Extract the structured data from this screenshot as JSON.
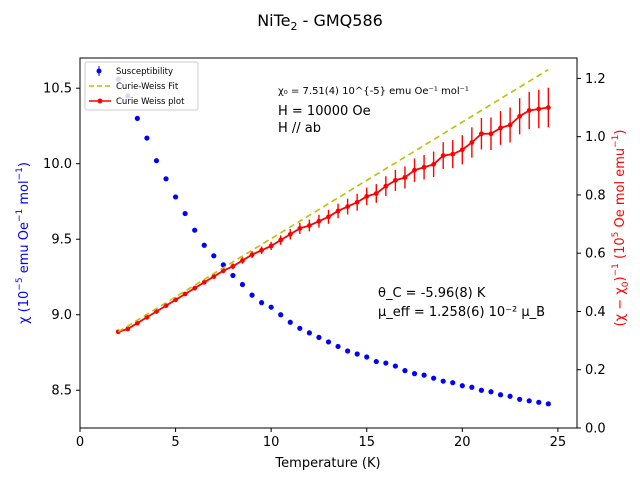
{
  "chart_data": {
    "type": "scatter",
    "title": "NiTe",
    "title_sub": "2",
    "title_rest": " - GMQ586",
    "xlabel": "Temperature (K)",
    "ylabel_left": {
      "prefix": "χ (10",
      "sup1": "−5",
      "mid": " emu Oe",
      "sup2": "−1",
      "mid2": " mol",
      "sup3": "−1",
      "suffix": ")"
    },
    "ylabel_right": {
      "prefix": "(χ − χ",
      "sub0": "0",
      "mid": ")",
      "sup1": "−1",
      "mid2": " (10",
      "sup2": "5",
      "mid3": " Oe mol emu",
      "sup3": "−1",
      "suffix": ")"
    },
    "xlim": [
      0,
      26
    ],
    "ylim_left": [
      8.25,
      10.7
    ],
    "ylim_right": [
      0,
      1.27
    ],
    "xticks": [
      0,
      5,
      10,
      15,
      20,
      25
    ],
    "yticks_left": [
      8.5,
      9.0,
      9.5,
      10.0,
      10.5
    ],
    "yticks_right": [
      0.0,
      0.2,
      0.4,
      0.6,
      0.8,
      1.0,
      1.2
    ],
    "legend": {
      "position": "top-left",
      "entries": [
        "Susceptibility",
        "Curie-Weiss Fit",
        "Curie Weiss plot"
      ]
    },
    "annotations": {
      "chi0": "χ₀ = 7.51(4) 10^{-5} emu Oe⁻¹ mol⁻¹",
      "field": "H = 10000 Oe",
      "orientation": "H // ab",
      "theta": "θ_C = -5.96(8) K",
      "mu_eff": "μ_eff =   1.258(6) 10⁻² μ_B"
    },
    "colors": {
      "susceptibility": "#0000ff",
      "fit": "#bfbf00",
      "curie_weiss": "#ff0000"
    },
    "series": [
      {
        "name": "Susceptibility",
        "axis": "left",
        "x": [
          2.0,
          2.5,
          3.0,
          3.5,
          4.0,
          4.5,
          5.0,
          5.5,
          6.0,
          6.5,
          7.0,
          7.5,
          8.0,
          8.5,
          9.0,
          9.5,
          10.0,
          10.5,
          11.0,
          11.5,
          12.0,
          12.5,
          13.0,
          13.5,
          14.0,
          14.5,
          15.0,
          15.5,
          16.0,
          16.5,
          17.0,
          17.5,
          18.0,
          18.5,
          19.0,
          19.5,
          20.0,
          20.5,
          21.0,
          21.5,
          22.0,
          22.5,
          23.0,
          23.5,
          24.0,
          24.5
        ],
        "y": [
          10.56,
          10.45,
          10.3,
          10.17,
          10.02,
          9.9,
          9.78,
          9.67,
          9.56,
          9.46,
          9.39,
          9.33,
          9.26,
          9.2,
          9.13,
          9.08,
          9.05,
          9.0,
          8.95,
          8.91,
          8.88,
          8.85,
          8.82,
          8.79,
          8.76,
          8.74,
          8.72,
          8.69,
          8.68,
          8.66,
          8.63,
          8.61,
          8.6,
          8.58,
          8.56,
          8.55,
          8.53,
          8.52,
          8.5,
          8.49,
          8.47,
          8.46,
          8.44,
          8.43,
          8.42,
          8.41
        ]
      },
      {
        "name": "Curie-Weiss Fit",
        "axis": "right",
        "x": [
          2.0,
          24.5
        ],
        "y": [
          0.33,
          1.23
        ]
      },
      {
        "name": "Curie Weiss plot",
        "axis": "right",
        "x": [
          2.0,
          2.5,
          3.0,
          3.5,
          4.0,
          4.5,
          5.0,
          5.5,
          6.0,
          6.5,
          7.0,
          7.5,
          8.0,
          8.5,
          9.0,
          9.5,
          10.0,
          10.5,
          11.0,
          11.5,
          12.0,
          12.5,
          13.0,
          13.5,
          14.0,
          14.5,
          15.0,
          15.5,
          16.0,
          16.5,
          17.0,
          17.5,
          18.0,
          18.5,
          19.0,
          19.5,
          20.0,
          20.5,
          21.0,
          21.5,
          22.0,
          22.5,
          23.0,
          23.5,
          24.0,
          24.5
        ],
        "y": [
          0.33,
          0.34,
          0.36,
          0.38,
          0.4,
          0.42,
          0.44,
          0.46,
          0.48,
          0.5,
          0.52,
          0.54,
          0.555,
          0.575,
          0.595,
          0.61,
          0.625,
          0.645,
          0.665,
          0.685,
          0.695,
          0.71,
          0.725,
          0.745,
          0.76,
          0.775,
          0.795,
          0.805,
          0.83,
          0.85,
          0.86,
          0.885,
          0.895,
          0.905,
          0.935,
          0.94,
          0.955,
          0.98,
          1.01,
          1.01,
          1.03,
          1.04,
          1.07,
          1.09,
          1.095,
          1.1
        ],
        "err": [
          0.005,
          0.005,
          0.005,
          0.005,
          0.005,
          0.005,
          0.005,
          0.005,
          0.006,
          0.007,
          0.008,
          0.009,
          0.01,
          0.011,
          0.012,
          0.013,
          0.014,
          0.016,
          0.018,
          0.019,
          0.02,
          0.022,
          0.024,
          0.025,
          0.027,
          0.029,
          0.03,
          0.032,
          0.034,
          0.036,
          0.038,
          0.04,
          0.042,
          0.044,
          0.046,
          0.048,
          0.05,
          0.052,
          0.054,
          0.056,
          0.058,
          0.06,
          0.062,
          0.064,
          0.066,
          0.068
        ]
      }
    ]
  }
}
